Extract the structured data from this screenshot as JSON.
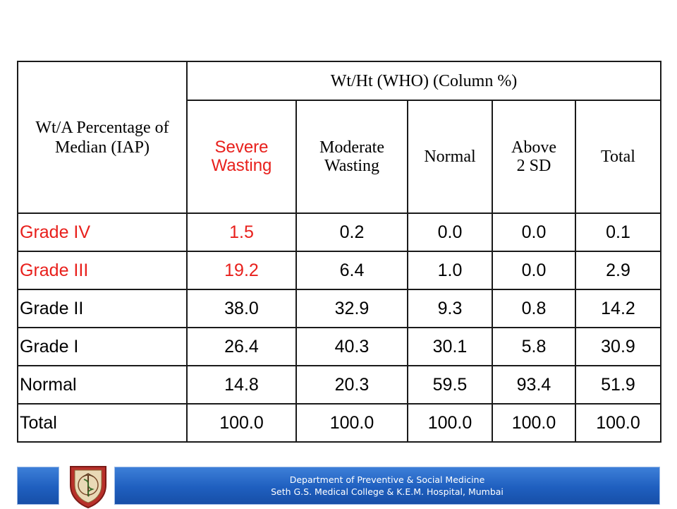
{
  "table": {
    "row_header": "Wt/A Percentage of Median (IAP)",
    "group_header": "Wt/Ht (WHO) (Column %)",
    "columns": [
      "Severe Wasting",
      "Moderate Wasting",
      "Normal",
      "Above 2 SD",
      "Total"
    ],
    "rows": [
      {
        "label": "Grade IV",
        "values": [
          "1.5",
          "0.2",
          "0.0",
          "0.0",
          "0.1"
        ]
      },
      {
        "label": "Grade III",
        "values": [
          "19.2",
          "6.4",
          "1.0",
          "0.0",
          "2.9"
        ]
      },
      {
        "label": "Grade II",
        "values": [
          "38.0",
          "32.9",
          "9.3",
          "0.8",
          "14.2"
        ]
      },
      {
        "label": "Grade I",
        "values": [
          "26.4",
          "40.3",
          "30.1",
          "5.8",
          "30.9"
        ]
      },
      {
        "label": "Normal",
        "values": [
          "14.8",
          "20.3",
          "59.5",
          "93.4",
          "51.9"
        ]
      },
      {
        "label": "Total",
        "values": [
          "100.0",
          "100.0",
          "100.0",
          "100.0",
          "100.0"
        ]
      }
    ],
    "highlight_color": "#e8201c"
  },
  "footer": {
    "line1": "Department of Preventive & Social Medicine",
    "line2": "Seth G.S. Medical College & K.E.M. Hospital, Mumbai",
    "logo_icon": "college-crest-icon",
    "bar_color": "#1f5fbf"
  }
}
